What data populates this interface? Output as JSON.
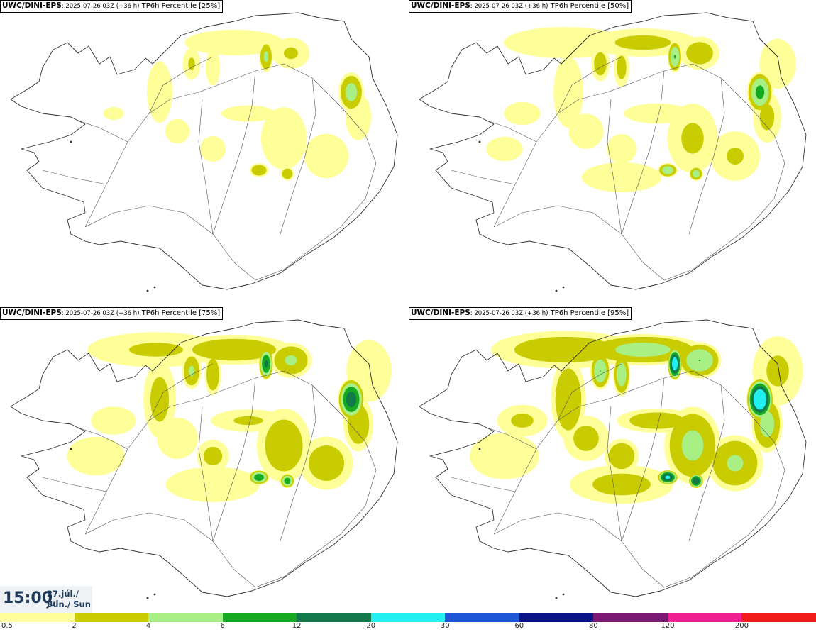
{
  "panels": [
    {
      "source": "UWC/DINI-EPS",
      "run": ": 2025-07-26 03Z (+36 h)",
      "field": " TP6h Percentile [25%]",
      "level": 0
    },
    {
      "source": "UWC/DINI-EPS",
      "run": ": 2025-07-26 03Z (+36 h)",
      "field": " TP6h Percentile [50%]",
      "level": 1
    },
    {
      "source": "UWC/DINI-EPS",
      "run": ": 2025-07-26 03Z (+36 h)",
      "field": " TP6h Percentile [75%]",
      "level": 2
    },
    {
      "source": "UWC/DINI-EPS",
      "run": ": 2025-07-26 03Z (+36 h)",
      "field": " TP6h Percentile [95%]",
      "level": 3
    }
  ],
  "time_box": {
    "hour": "15:00",
    "date_line1": "27.júl./ Jul",
    "date_line2": "Sun./ Sun"
  },
  "scale": {
    "labels": [
      "0.5",
      "2",
      "4",
      "6",
      "12",
      "20",
      "30",
      "60",
      "80",
      "120",
      "200"
    ],
    "colors": [
      "#ffff99",
      "#c8cc00",
      "#a8f084",
      "#16aa22",
      "#127a4a",
      "#22f0f0",
      "#1e56d8",
      "#0a1488",
      "#7a1872",
      "#f02090",
      "#f21c1c"
    ]
  },
  "colors": {
    "coast": "#303030",
    "road": "#555555",
    "land": "#ffffff"
  }
}
